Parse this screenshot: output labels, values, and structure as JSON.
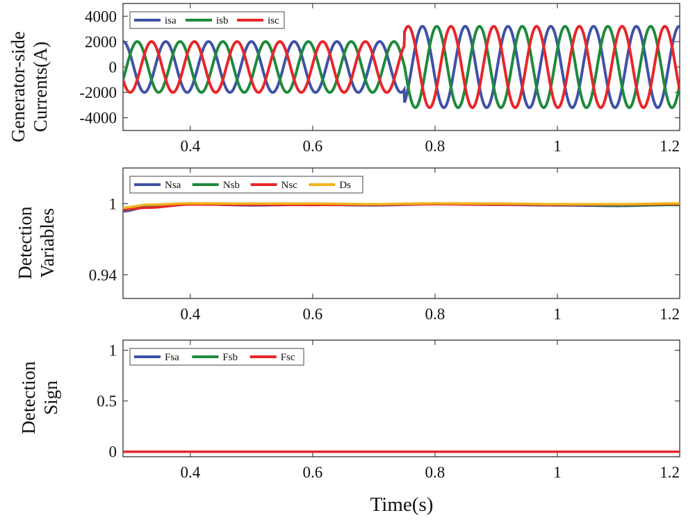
{
  "chart_data": [
    {
      "type": "line",
      "ylabel": "Generator-side Currents(A)",
      "ylabel_lines": [
        "Generator-side",
        "Currents(A)"
      ],
      "xlim": [
        0.29,
        1.2
      ],
      "ylim": [
        -5000,
        5000
      ],
      "xticks": [
        0.4,
        0.6,
        0.8,
        1,
        1.2
      ],
      "xtick_labels": [
        "0.4",
        "0.6",
        "0.8",
        "1",
        "1.2"
      ],
      "yticks": [
        4000,
        2000,
        0,
        -2000,
        -4000
      ],
      "ytick_labels": [
        "4000",
        "2000",
        "0",
        "-2000",
        "-4000"
      ],
      "legend_position": "top-left",
      "signal": {
        "frequency_hz": 14.3,
        "amp_before": 2000,
        "amp_after": 3200,
        "step_time": 0.75
      },
      "series": [
        {
          "name": "isa",
          "color": "#3f51a7",
          "phase_deg": 0
        },
        {
          "name": "isb",
          "color": "#1e8a3c",
          "phase_deg": -120
        },
        {
          "name": "isc",
          "color": "#e8262a",
          "phase_deg": 120
        }
      ]
    },
    {
      "type": "line",
      "ylabel": "Detection Variables",
      "ylabel_lines": [
        "Detection",
        "Variables"
      ],
      "xlim": [
        0.29,
        1.2
      ],
      "ylim": [
        0.92,
        1.03
      ],
      "xticks": [
        0.4,
        0.6,
        0.8,
        1,
        1.2
      ],
      "xtick_labels": [
        "0.4",
        "0.6",
        "0.8",
        "1",
        "1.2"
      ],
      "yticks": [
        1,
        0.94
      ],
      "ytick_labels": [
        "1",
        "0.94"
      ],
      "legend_position": "top-left",
      "series": [
        {
          "name": "Nsa",
          "color": "#3f51a7",
          "x": [
            0.29,
            0.33,
            0.4,
            0.5,
            0.6,
            0.7,
            0.8,
            0.9,
            1.0,
            1.1,
            1.2
          ],
          "y": [
            0.9935,
            0.997,
            0.9995,
            0.9985,
            0.999,
            0.9985,
            0.9995,
            0.999,
            0.9985,
            0.998,
            0.999
          ]
        },
        {
          "name": "Nsb",
          "color": "#1e8a3c",
          "x": [
            0.29,
            0.33,
            0.4,
            0.5,
            0.6,
            0.7,
            0.8,
            0.9,
            1.0,
            1.1,
            1.2
          ],
          "y": [
            0.995,
            0.998,
            1.0,
            0.9995,
            0.9995,
            0.999,
            1.0,
            0.9995,
            0.999,
            0.9985,
            0.9988
          ]
        },
        {
          "name": "Nsc",
          "color": "#e8262a",
          "x": [
            0.29,
            0.33,
            0.4,
            0.5,
            0.6,
            0.7,
            0.8,
            0.9,
            1.0,
            1.1,
            1.2
          ],
          "y": [
            0.995,
            0.9965,
            0.9992,
            0.999,
            0.9988,
            0.999,
            0.9995,
            0.9992,
            0.999,
            0.9992,
            0.9995
          ]
        },
        {
          "name": "Ds",
          "color": "#f0b41c",
          "x": [
            0.29,
            0.33,
            0.4,
            0.5,
            0.6,
            0.7,
            0.8,
            0.9,
            1.0,
            1.1,
            1.2
          ],
          "y": [
            0.9965,
            0.999,
            1.0002,
            1.0,
            1.0,
            0.9995,
            1.0002,
            1.0,
            0.9995,
            0.9995,
            1.0002
          ]
        }
      ]
    },
    {
      "type": "line",
      "ylabel": "Detection Sign",
      "ylabel_lines": [
        "Detection",
        "Sign"
      ],
      "xlabel": "Time(s)",
      "xlim": [
        0.29,
        1.2
      ],
      "ylim": [
        -0.05,
        1.1
      ],
      "xticks": [
        0.4,
        0.6,
        0.8,
        1,
        1.2
      ],
      "xtick_labels": [
        "0.4",
        "0.6",
        "0.8",
        "1",
        "1.2"
      ],
      "yticks": [
        1,
        0.5,
        0
      ],
      "ytick_labels": [
        "1",
        "0.5",
        "0"
      ],
      "legend_position": "top-left",
      "series": [
        {
          "name": "Fsa",
          "color": "#3f51a7",
          "x": [
            0.29,
            1.2
          ],
          "y": [
            0,
            0
          ]
        },
        {
          "name": "Fsb",
          "color": "#1e8a3c",
          "x": [
            0.29,
            1.2
          ],
          "y": [
            0,
            0
          ]
        },
        {
          "name": "Fsc",
          "color": "#e8262a",
          "x": [
            0.29,
            1.2
          ],
          "y": [
            0,
            0
          ]
        }
      ]
    }
  ]
}
